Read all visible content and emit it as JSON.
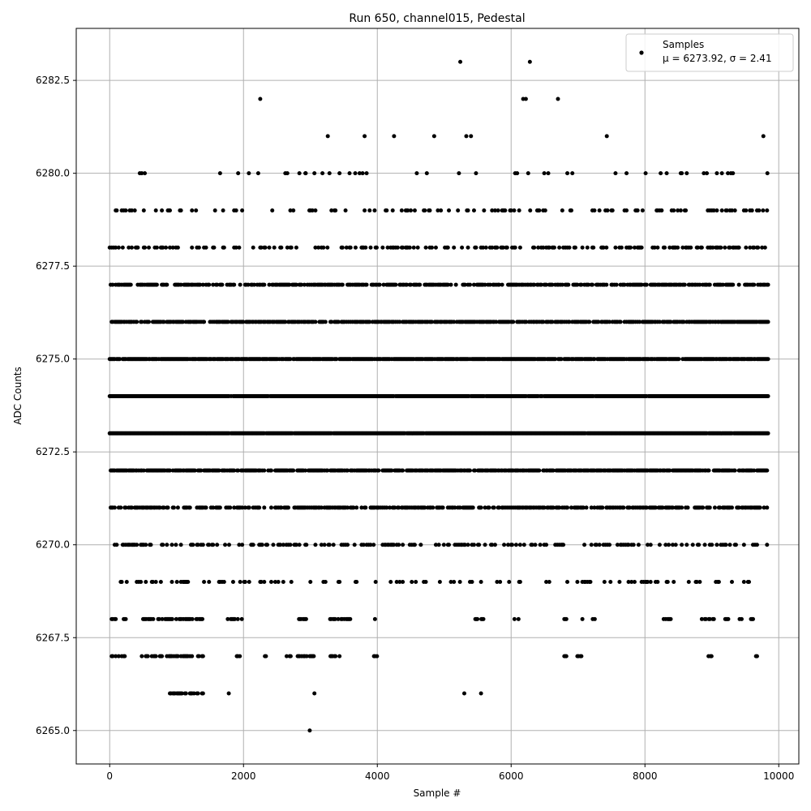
{
  "chart_data": {
    "type": "scatter",
    "title": "Run 650, channel015, Pedestal",
    "xlabel": "Sample #",
    "ylabel": "ADC Counts",
    "xlim": [
      -500,
      10300
    ],
    "ylim": [
      6264.1,
      6283.9
    ],
    "xticks": [
      0,
      2000,
      4000,
      6000,
      8000,
      10000
    ],
    "xtick_labels": [
      "0",
      "2000",
      "4000",
      "6000",
      "8000",
      "10000"
    ],
    "yticks": [
      6265.0,
      6267.5,
      6270.0,
      6272.5,
      6275.0,
      6277.5,
      6280.0,
      6282.5
    ],
    "ytick_labels": [
      "6265.0",
      "6267.5",
      "6270.0",
      "6272.5",
      "6275.0",
      "6277.5",
      "6280.0",
      "6282.5"
    ],
    "grid": true,
    "legend_position": "top-right",
    "marker_color": "#000000",
    "n_samples": 9850,
    "series": [
      {
        "name": "Samples",
        "stats_label": "μ = 6273.92, σ = 2.41",
        "mean": 6273.92,
        "std": 2.41
      }
    ],
    "outliers": [
      {
        "x": 2250,
        "y": 6282
      },
      {
        "x": 5240,
        "y": 6283
      },
      {
        "x": 6280,
        "y": 6283
      },
      {
        "x": 6180,
        "y": 6282
      },
      {
        "x": 6220,
        "y": 6282
      },
      {
        "x": 6700,
        "y": 6282
      },
      {
        "x": 3260,
        "y": 6281
      },
      {
        "x": 3810,
        "y": 6281
      },
      {
        "x": 4250,
        "y": 6281
      },
      {
        "x": 4850,
        "y": 6281
      },
      {
        "x": 5330,
        "y": 6281
      },
      {
        "x": 5400,
        "y": 6281
      },
      {
        "x": 7430,
        "y": 6281
      },
      {
        "x": 9770,
        "y": 6281
      },
      {
        "x": 1650,
        "y": 6280
      },
      {
        "x": 2080,
        "y": 6280
      },
      {
        "x": 2930,
        "y": 6280
      },
      {
        "x": 3670,
        "y": 6280
      },
      {
        "x": 8010,
        "y": 6280
      },
      {
        "x": 9830,
        "y": 6280
      },
      {
        "x": 2990,
        "y": 6265
      },
      {
        "x": 1780,
        "y": 6266
      },
      {
        "x": 3060,
        "y": 6266
      },
      {
        "x": 5300,
        "y": 6266
      },
      {
        "x": 5550,
        "y": 6266
      }
    ],
    "dense_levels": [
      {
        "y": 6266,
        "segments": [
          [
            900,
            1400
          ]
        ]
      },
      {
        "y": 6267,
        "segments": [
          [
            0,
            300
          ],
          [
            450,
            1400
          ],
          [
            1900,
            1950
          ],
          [
            2320,
            2370
          ],
          [
            2600,
            3050
          ],
          [
            3300,
            3450
          ],
          [
            3950,
            4000
          ],
          [
            5550,
            5620
          ],
          [
            6780,
            6830
          ],
          [
            6990,
            7050
          ],
          [
            8950,
            9000
          ],
          [
            9630,
            9680
          ]
        ]
      },
      {
        "y": 6268,
        "segments": [
          [
            0,
            250
          ],
          [
            500,
            1400
          ],
          [
            1750,
            2000
          ],
          [
            2800,
            3000
          ],
          [
            3250,
            3600
          ],
          [
            3950,
            4000
          ],
          [
            5450,
            5600
          ],
          [
            6050,
            6120
          ],
          [
            6780,
            6850
          ],
          [
            7050,
            7100
          ],
          [
            7220,
            7260
          ],
          [
            8280,
            8400
          ],
          [
            8850,
            9050
          ],
          [
            9200,
            9250
          ],
          [
            9400,
            9450
          ],
          [
            9570,
            9620
          ]
        ]
      }
    ],
    "uniform_levels": [
      {
        "y": 6269,
        "density": 0.16,
        "x_range": [
          0,
          9850
        ]
      },
      {
        "y": 6270,
        "density": 0.3,
        "x_range": [
          0,
          9850
        ]
      },
      {
        "y": 6271,
        "density": 0.55,
        "x_range": [
          0,
          9850
        ]
      },
      {
        "y": 6272,
        "density": 0.8,
        "x_range": [
          0,
          9850
        ]
      },
      {
        "y": 6273,
        "density": 0.98,
        "x_range": [
          0,
          9850
        ]
      },
      {
        "y": 6274,
        "density": 0.98,
        "x_range": [
          0,
          9850
        ]
      },
      {
        "y": 6275,
        "density": 0.9,
        "x_range": [
          0,
          9850
        ]
      },
      {
        "y": 6276,
        "density": 0.72,
        "x_range": [
          0,
          9850
        ]
      },
      {
        "y": 6277,
        "density": 0.55,
        "x_range": [
          0,
          9850
        ]
      },
      {
        "y": 6278,
        "density": 0.32,
        "x_range": [
          0,
          9850
        ]
      },
      {
        "y": 6279,
        "density": 0.16,
        "x_range": [
          0,
          9850
        ]
      },
      {
        "y": 6280,
        "density": 0.05,
        "x_range": [
          0,
          9850
        ]
      }
    ]
  }
}
